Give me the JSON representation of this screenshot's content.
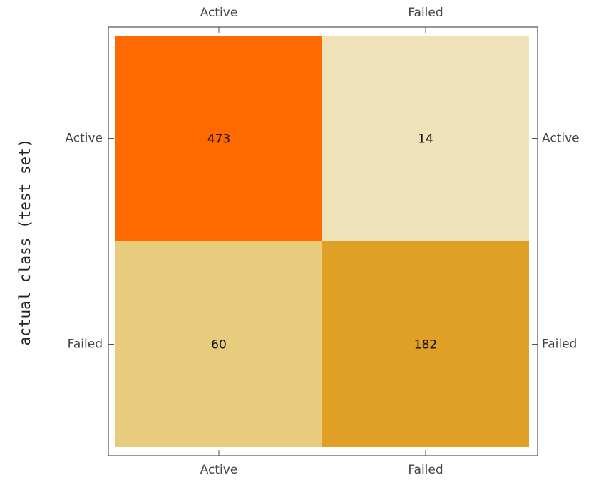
{
  "chart_data": {
    "type": "heatmap",
    "y_label": "actual class (test set)",
    "x_categories": [
      "Active",
      "Failed"
    ],
    "y_categories": [
      "Active",
      "Failed"
    ],
    "values": [
      [
        473,
        14
      ],
      [
        60,
        182
      ]
    ],
    "colors": [
      [
        "#ff6a00",
        "#f0e2b8"
      ],
      [
        "#e8cc7e",
        "#e0a026"
      ]
    ]
  }
}
